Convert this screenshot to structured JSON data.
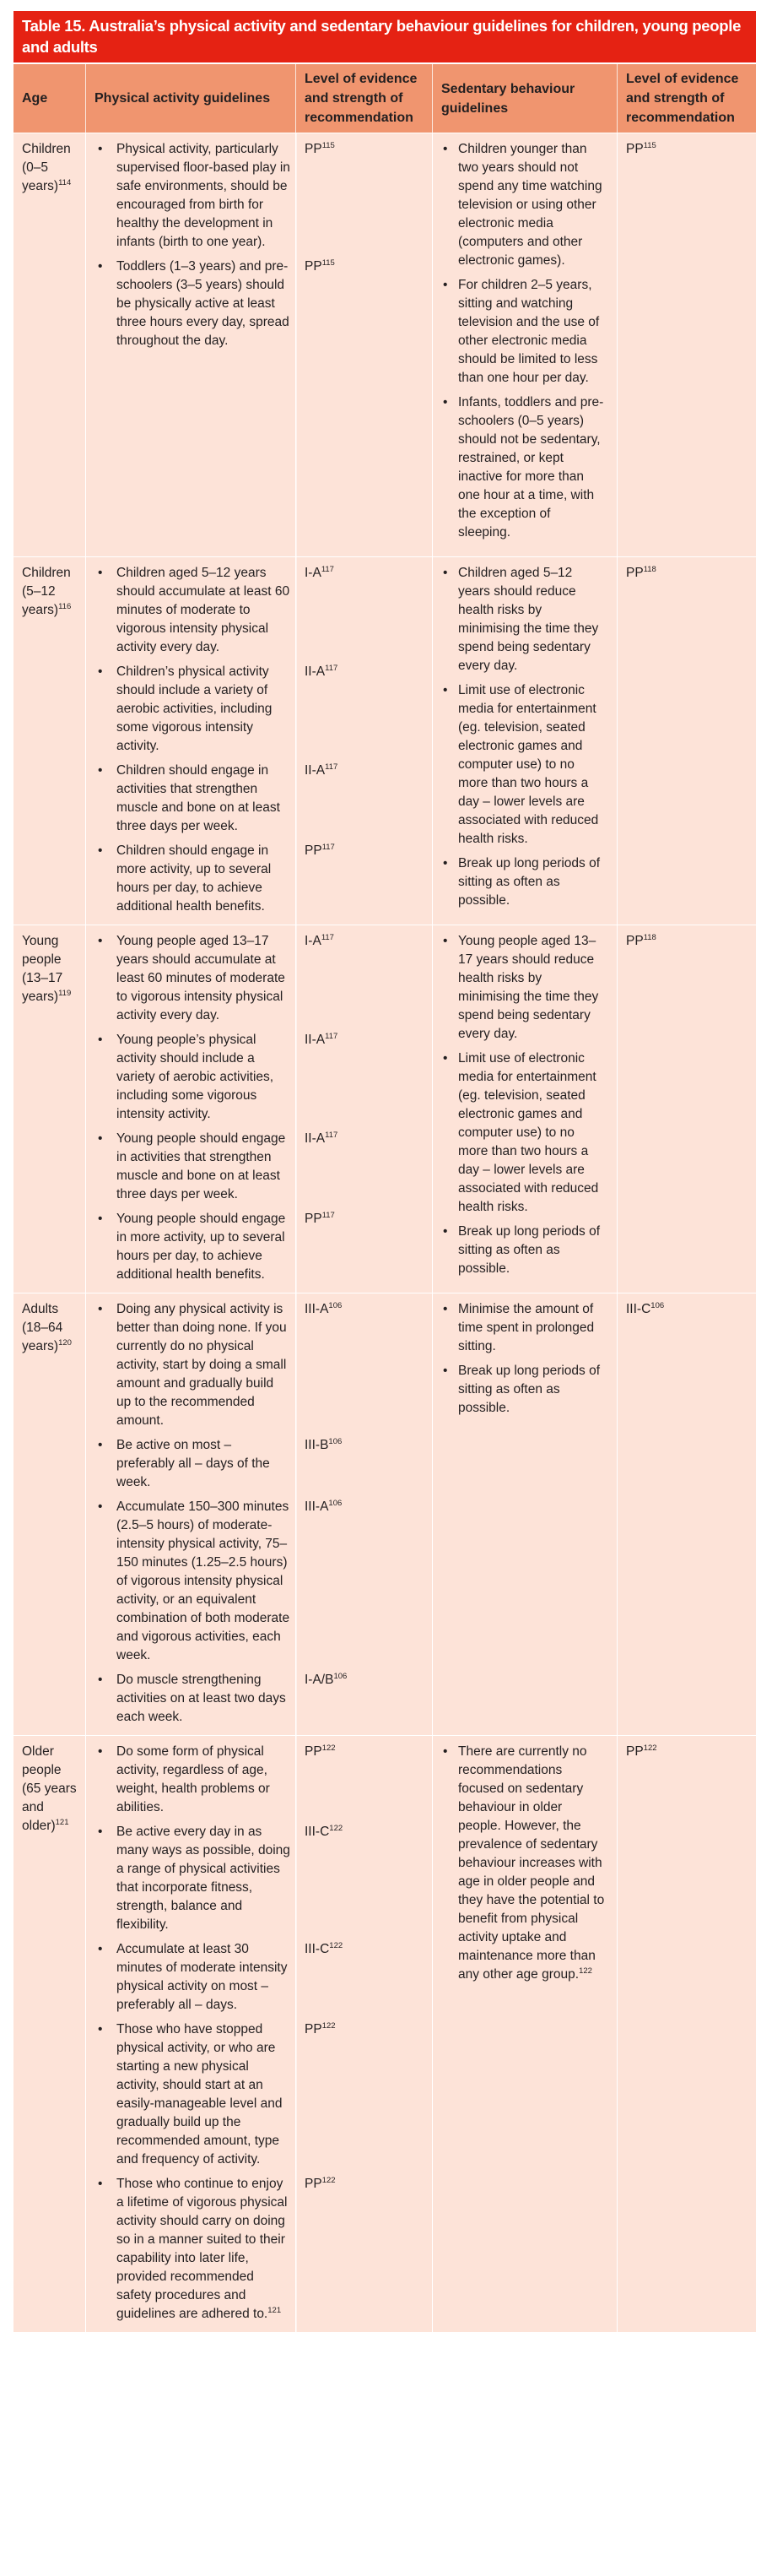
{
  "title": "Table 15. Australia’s physical activity and sedentary behaviour guidelines for children, young people and adults",
  "colors": {
    "title_bg": "#e52213",
    "header_bg": "#f0956f",
    "body_bg": "#fde3d8"
  },
  "headers": [
    "Age",
    "Physical activity guidelines",
    "Level of evidence and strength of recommendation",
    "Sedentary behaviour guidelines",
    "Level of evidence and strength of recommendation"
  ],
  "rows": [
    {
      "age": "Children (0–5 years)",
      "age_sup": "114",
      "physical": [
        {
          "text": "Physical activity, particularly supervised floor-based play in safe environments, should be encouraged from birth for healthy the development in infants (birth to one year).",
          "level": "PP",
          "level_sup": "115"
        },
        {
          "text": "Toddlers (1–3 years) and pre-schoolers (3–5 years) should be physically active at least three hours every day, spread throughout the day.",
          "level": "PP",
          "level_sup": "115"
        }
      ],
      "sedentary": [
        {
          "text": "Children younger than two years should not spend any time watching television or using other electronic media (computers and other electronic games)."
        },
        {
          "text": "For children 2–5 years, sitting and watching television and the use of other electronic media should be limited to less than one hour per day."
        },
        {
          "text": "Infants, toddlers and pre-schoolers (0–5 years) should not be sedentary, restrained, or kept inactive for more than one hour at a time, with the exception of sleeping."
        }
      ],
      "sedentary_level": "PP",
      "sedentary_level_sup": "115"
    },
    {
      "age": "Children (5–12 years)",
      "age_sup": "116",
      "physical": [
        {
          "text": "Children aged 5–12 years should accumulate at least 60 minutes of moderate to vigorous intensity physical activity every day.",
          "level": "I-A",
          "level_sup": "117"
        },
        {
          "text": "Children’s physical activity should include a variety of aerobic activities, including some vigorous intensity activity.",
          "level": "II-A",
          "level_sup": "117"
        },
        {
          "text": "Children should engage in activities that strengthen muscle and bone on at least three days per week.",
          "level": "II-A",
          "level_sup": "117"
        },
        {
          "text": "Children should engage in more activity, up to several hours per day, to achieve additional health benefits.",
          "level": "PP",
          "level_sup": "117"
        }
      ],
      "sedentary": [
        {
          "text": "Children aged 5–12 years should reduce health risks by minimising the time they spend being sedentary every day."
        },
        {
          "text": "Limit use of electronic media for entertainment (eg. television, seated electronic games and computer use) to no more than two hours a day – lower levels are associated with reduced health risks."
        },
        {
          "text": "Break up long periods of sitting as often as possible."
        }
      ],
      "sedentary_level": "PP",
      "sedentary_level_sup": "118"
    },
    {
      "age": "Young people (13–17 years)",
      "age_sup": "119",
      "physical": [
        {
          "text": "Young people aged 13–17 years should accumulate at least 60 minutes of moderate to vigorous intensity physical activity every day.",
          "level": "I-A",
          "level_sup": "117"
        },
        {
          "text": "Young people’s physical activity should include a variety of aerobic activities, including some vigorous intensity activity.",
          "level": "II-A",
          "level_sup": "117"
        },
        {
          "text": "Young people should engage in activities that strengthen muscle and bone on at least three days per week.",
          "level": "II-A",
          "level_sup": "117"
        },
        {
          "text": "Young people should engage in more activity, up to several hours per day, to achieve additional health benefits.",
          "level": "PP",
          "level_sup": "117"
        }
      ],
      "sedentary": [
        {
          "text": "Young people aged 13–17 years should reduce health risks by minimising the time they spend being sedentary every day."
        },
        {
          "text": "Limit use of electronic media for entertainment (eg. television, seated electronic games and computer use) to no more than two hours a day – lower levels are associated with reduced health risks."
        },
        {
          "text": "Break up long periods of sitting as often as possible."
        }
      ],
      "sedentary_level": "PP",
      "sedentary_level_sup": "118"
    },
    {
      "age": "Adults (18–64 years)",
      "age_sup": "120",
      "physical": [
        {
          "text": "Doing any physical activity is better than doing none. If you currently do no physical activity, start by doing a small amount and gradually build up to the recommended amount.",
          "level": "III-A",
          "level_sup": "106"
        },
        {
          "text": "Be active on most – preferably all – days of the week.",
          "level": "III-B",
          "level_sup": "106"
        },
        {
          "text": "Accumulate 150–300 minutes (2.5–5 hours) of moderate-intensity physical activity, 75–150 minutes (1.25–2.5 hours) of vigorous intensity physical activity, or an equivalent combination of both moderate and vigorous activities, each week.",
          "level": "III-A",
          "level_sup": "106"
        },
        {
          "text": "Do muscle strengthening activities on at least two days each week.",
          "level": "I-A/B",
          "level_sup": "106"
        }
      ],
      "sedentary": [
        {
          "text": "Minimise the amount of time spent in prolonged sitting."
        },
        {
          "text": "Break up long periods of sitting as often as possible."
        }
      ],
      "sedentary_level": "III-C",
      "sedentary_level_sup": "106"
    },
    {
      "age": "Older people (65 years and older)",
      "age_sup": "121",
      "physical": [
        {
          "text": "Do some form of physical activity, regardless of age, weight, health problems or abilities.",
          "level": "PP",
          "level_sup": "122"
        },
        {
          "text": "Be active every day in as many ways as possible, doing a range of physical activities that incorporate fitness, strength, balance and flexibility.",
          "level": "III-C",
          "level_sup": "122"
        },
        {
          "text": "Accumulate at least 30 minutes of moderate intensity physical activity on most – preferably all – days.",
          "level": "III-C",
          "level_sup": "122"
        },
        {
          "text": "Those who have stopped physical activity, or who are starting a new physical activity, should start at an easily-manageable level and gradually build up the recommended amount, type and frequency of activity.",
          "level": "PP",
          "level_sup": "122"
        },
        {
          "text": "Those who continue to enjoy a lifetime of vigorous physical activity should carry on doing so in a manner suited to their capability into later life, provided recommended safety procedures and guidelines are adhered to.",
          "sup": "121",
          "level": "PP",
          "level_sup": "122"
        }
      ],
      "sedentary": [
        {
          "text": "There are currently no recommendations focused on sedentary behaviour in older people. However, the prevalence of sedentary behaviour increases with age in older people and they have the potential to benefit from physical activity uptake and maintenance more than any other age group.",
          "sup": "122"
        }
      ],
      "sedentary_level": "PP",
      "sedentary_level_sup": "122"
    }
  ]
}
